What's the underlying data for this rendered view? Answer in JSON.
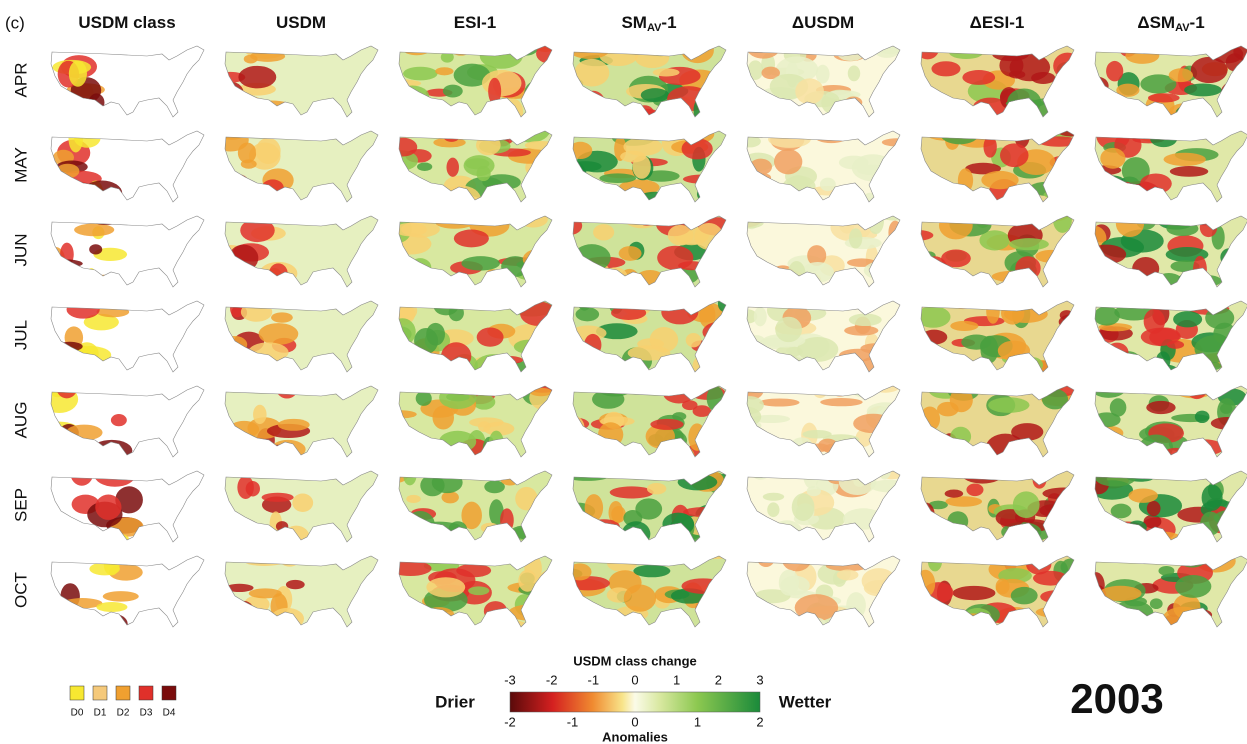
{
  "panel_label": "(c)",
  "columns": [
    {
      "label": "USDM class"
    },
    {
      "label": "USDM"
    },
    {
      "label": "ESI-1"
    },
    {
      "label": "SM",
      "sub": "AV",
      "suffix": "-1"
    },
    {
      "label": "ΔUSDM"
    },
    {
      "label": "ΔESI-1"
    },
    {
      "label": "ΔSM",
      "sub": "AV",
      "suffix": "-1"
    }
  ],
  "rows": [
    "APR",
    "MAY",
    "JUN",
    "JUL",
    "AUG",
    "SEP",
    "OCT"
  ],
  "class_legend": [
    {
      "label": "D0",
      "color": "#f7e831"
    },
    {
      "label": "D1",
      "color": "#f5c97a"
    },
    {
      "label": "D2",
      "color": "#f0a030"
    },
    {
      "label": "D3",
      "color": "#e0302a"
    },
    {
      "label": "D4",
      "color": "#7a0c0c"
    }
  ],
  "colorbar": {
    "title": "USDM class change",
    "left_label": "Drier",
    "right_label": "Wetter",
    "bottom_title": "Anomalies",
    "top_range": [
      -3,
      3
    ],
    "top_ticks": [
      -3,
      -2,
      -1,
      0,
      1,
      2,
      3
    ],
    "bottom_range": [
      -2,
      2
    ],
    "bottom_ticks": [
      -2,
      -1,
      0,
      1,
      2
    ]
  },
  "year": "2003"
}
